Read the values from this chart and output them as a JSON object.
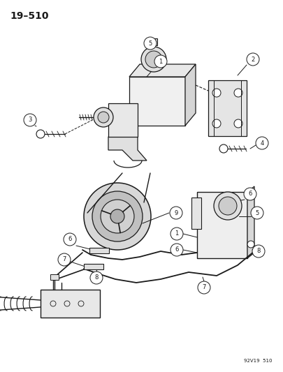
{
  "title_text": "19–510",
  "footer_text": "92V19  510",
  "background_color": "#ffffff",
  "line_color": "#1a1a1a",
  "fig_width": 4.06,
  "fig_height": 5.33,
  "dpi": 100
}
